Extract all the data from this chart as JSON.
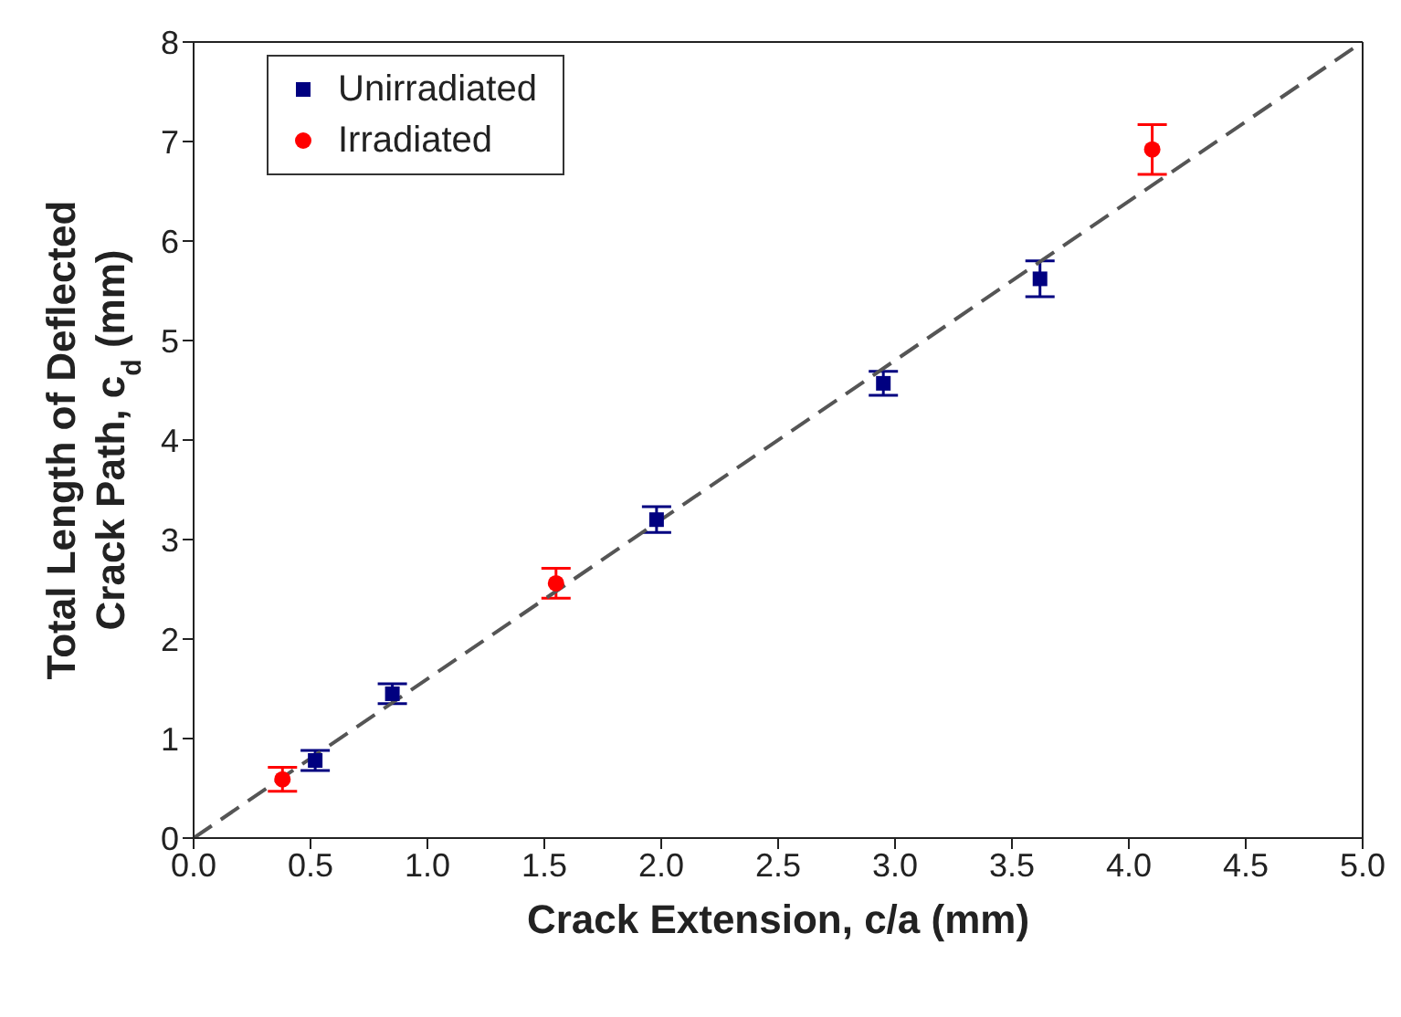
{
  "chart_data": {
    "type": "scatter",
    "xlabel": "Crack Extension, c/a (mm)",
    "ylabel": "Total Length of Deflected\nCrack Path, c$_{d}$ (mm)",
    "xlim": [
      0,
      5
    ],
    "ylim": [
      0,
      8
    ],
    "xticks": [
      {
        "value": 0,
        "label": "0.0"
      },
      {
        "value": 0.5,
        "label": "0.5"
      },
      {
        "value": 1,
        "label": "1.0"
      },
      {
        "value": 1.5,
        "label": "1.5"
      },
      {
        "value": 2,
        "label": "2.0"
      },
      {
        "value": 2.5,
        "label": "2.5"
      },
      {
        "value": 3,
        "label": "3.0"
      },
      {
        "value": 3.5,
        "label": "3.5"
      },
      {
        "value": 4,
        "label": "4.0"
      },
      {
        "value": 4.5,
        "label": "4.5"
      },
      {
        "value": 5,
        "label": "5.0"
      }
    ],
    "yticks": [
      0,
      1,
      2,
      3,
      4,
      5,
      6,
      7,
      8
    ],
    "legend": "top left",
    "series": [
      {
        "name": "Unirradiated",
        "color": "#000080",
        "marker": "square",
        "x": [
          0.52,
          0.85,
          1.98,
          2.95,
          3.62
        ],
        "values": [
          0.78,
          1.45,
          3.2,
          4.57,
          5.62
        ],
        "errors": [
          0.1,
          0.1,
          0.13,
          0.12,
          0.18
        ]
      },
      {
        "name": "Irradiated",
        "color": "#ff0000",
        "marker": "circle",
        "x": [
          0.38,
          1.55,
          4.1
        ],
        "values": [
          0.59,
          2.56,
          6.92
        ],
        "errors": [
          0.12,
          0.15,
          0.25
        ]
      },
      {
        "type": "line",
        "color": "#555555",
        "line_style": "dashed",
        "marker": "none",
        "x": [
          0,
          5
        ],
        "values": [
          0,
          8
        ]
      }
    ]
  }
}
